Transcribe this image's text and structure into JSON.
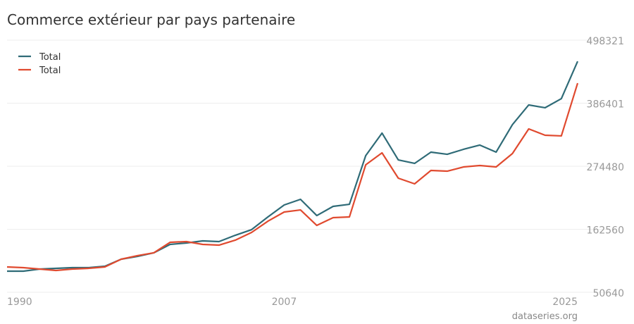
{
  "chart_data": {
    "type": "line",
    "title": "Commerce extérieur par pays partenaire",
    "source": "dataseries.org",
    "x": [
      1990,
      1991,
      1992,
      1993,
      1994,
      1995,
      1996,
      1997,
      1998,
      1999,
      2000,
      2001,
      2002,
      2003,
      2004,
      2005,
      2006,
      2007,
      2008,
      2009,
      2010,
      2011,
      2012,
      2013,
      2014,
      2015,
      2016,
      2017,
      2018,
      2019,
      2020,
      2021,
      2022,
      2023,
      2024,
      2025
    ],
    "series": [
      {
        "name": "Total",
        "color": "#2f6b77",
        "values": [
          88155,
          88155,
          91900,
          93160,
          94400,
          94400,
          96900,
          109400,
          114400,
          120700,
          135700,
          138200,
          141900,
          140700,
          151900,
          161900,
          184400,
          205700,
          215700,
          186900,
          203200,
          206900,
          293200,
          333300,
          285700,
          279500,
          299500,
          295700,
          304500,
          312000,
          299500,
          348300,
          383300,
          378300,
          394500,
          460800
        ]
      },
      {
        "name": "Total",
        "color": "#e04a2f",
        "values": [
          95700,
          94400,
          91900,
          89400,
          91900,
          93200,
          95700,
          109400,
          115700,
          120700,
          139400,
          140700,
          135700,
          134400,
          143200,
          156900,
          176900,
          193200,
          196900,
          169400,
          183200,
          184400,
          277000,
          298200,
          253200,
          243200,
          267000,
          265700,
          273200,
          275700,
          273200,
          297000,
          340800,
          329500,
          328300,
          422000
        ]
      }
    ],
    "xlim": [
      1990,
      2025
    ],
    "xticks": [
      1990,
      2007,
      2025
    ],
    "ylim": [
      50640,
      498321
    ],
    "yticks": [
      50640,
      162560,
      274480,
      386401,
      498321
    ],
    "grid": true,
    "legend": "top-left"
  }
}
